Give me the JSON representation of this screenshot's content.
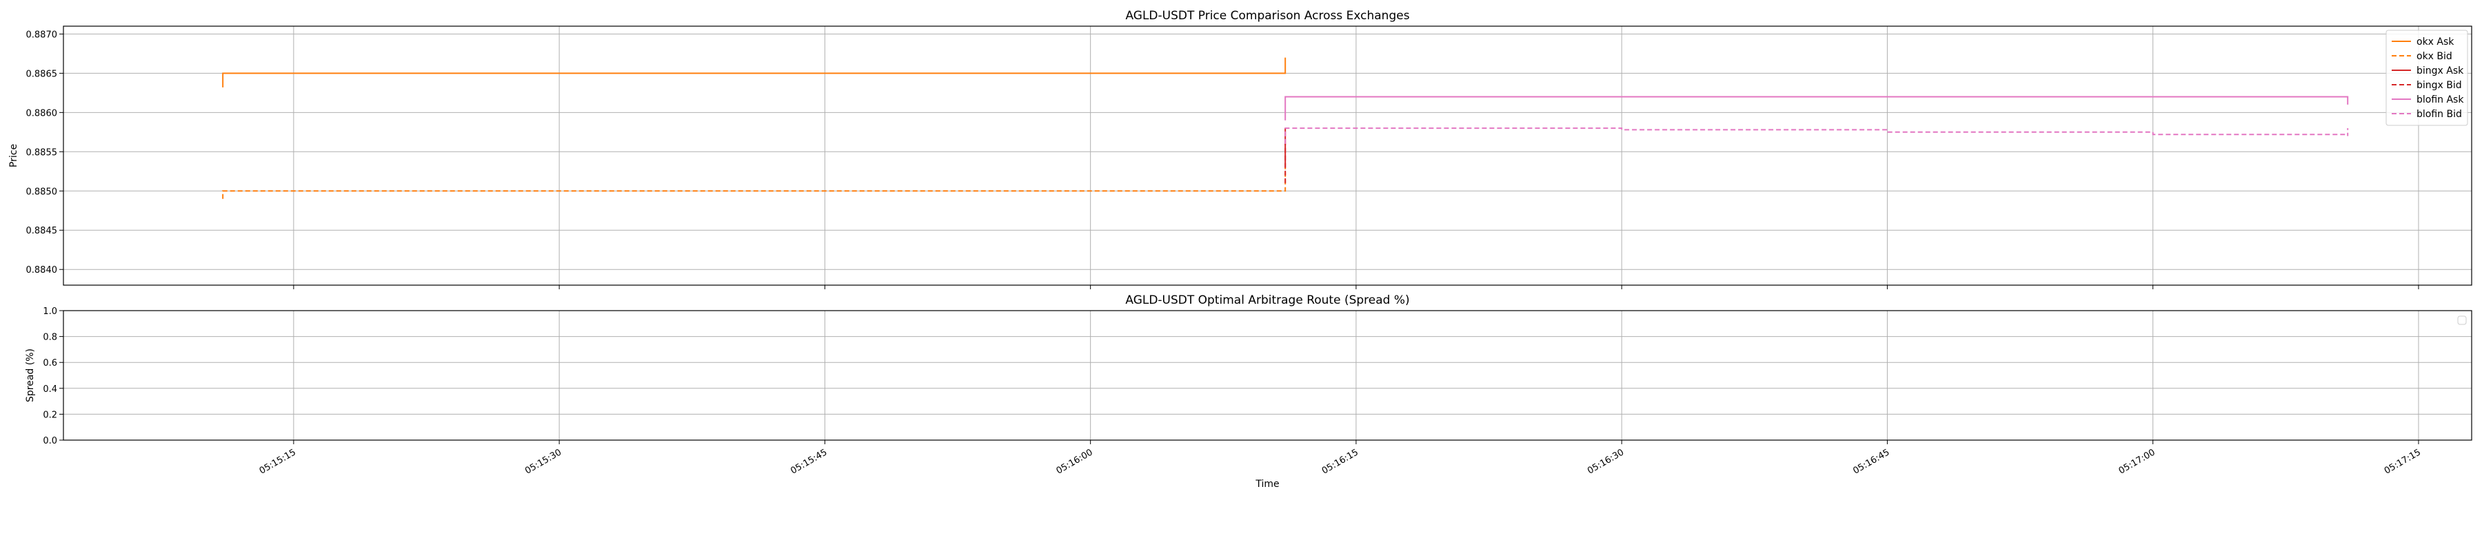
{
  "chart_data": [
    {
      "type": "line",
      "drawstyle": "steps-post",
      "title": "AGLD-USDT Price Comparison Across Exchanges",
      "xlabel": "",
      "ylabel": "Price",
      "xlim": [
        "05:15:02",
        "05:17:18"
      ],
      "ylim": [
        0.8838,
        0.8871
      ],
      "yticks": [
        "0.8840",
        "0.8845",
        "0.8850",
        "0.8855",
        "0.8860",
        "0.8865",
        "0.8870"
      ],
      "grid": true,
      "legend": "top-right",
      "series": [
        {
          "name": "okx Ask",
          "color": "#ff7f0e",
          "dash": false,
          "points": [
            [
              "05:15:11",
              0.88632
            ],
            [
              "05:15:11",
              0.8865
            ],
            [
              "05:16:11",
              0.8865
            ],
            [
              "05:16:11",
              0.8867
            ]
          ]
        },
        {
          "name": "okx Bid",
          "color": "#ff7f0e",
          "dash": true,
          "points": [
            [
              "05:15:11",
              0.8849
            ],
            [
              "05:15:11",
              0.885
            ],
            [
              "05:16:11",
              0.885
            ],
            [
              "05:16:11",
              0.8853
            ]
          ]
        },
        {
          "name": "bingx Ask",
          "color": "#d62728",
          "dash": false,
          "points": [
            [
              "05:16:11",
              0.8853
            ],
            [
              "05:16:11",
              0.8858
            ]
          ]
        },
        {
          "name": "bingx Bid",
          "color": "#d62728",
          "dash": true,
          "points": [
            [
              "05:16:11",
              0.8851
            ],
            [
              "05:16:11",
              0.8856
            ]
          ]
        },
        {
          "name": "blofin Ask",
          "color": "#e377c2",
          "dash": false,
          "points": [
            [
              "05:16:11",
              0.8859
            ],
            [
              "05:16:11",
              0.8862
            ],
            [
              "05:17:11",
              0.8862
            ],
            [
              "05:17:11",
              0.8861
            ]
          ]
        },
        {
          "name": "blofin Bid",
          "color": "#e377c2",
          "dash": true,
          "points": [
            [
              "05:16:11",
              0.8856
            ],
            [
              "05:16:11",
              0.8858
            ],
            [
              "05:16:30",
              0.88578
            ],
            [
              "05:16:45",
              0.88575
            ],
            [
              "05:17:00",
              0.88572
            ],
            [
              "05:17:11",
              0.8857
            ],
            [
              "05:17:11",
              0.8858
            ]
          ]
        }
      ]
    },
    {
      "type": "line",
      "title": "AGLD-USDT Optimal Arbitrage Route (Spread %)",
      "xlabel": "Time",
      "ylabel": "Spread (%)",
      "xlim": [
        "05:15:02",
        "05:17:18"
      ],
      "ylim": [
        0.0,
        1.0
      ],
      "yticks": [
        "0.0",
        "0.2",
        "0.4",
        "0.6",
        "0.8",
        "1.0"
      ],
      "xticks": [
        "05:15:15",
        "05:15:30",
        "05:15:45",
        "05:16:00",
        "05:16:15",
        "05:16:30",
        "05:16:45",
        "05:17:00",
        "05:17:15"
      ],
      "grid": true,
      "legend": "top-right (empty)",
      "series": []
    }
  ]
}
